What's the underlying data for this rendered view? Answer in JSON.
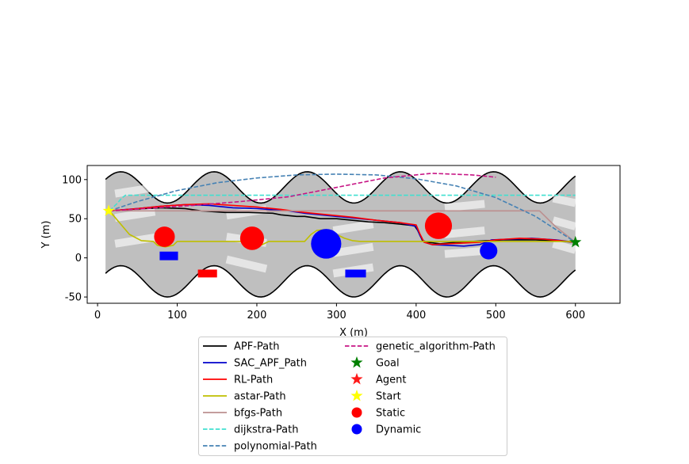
{
  "chart_data": {
    "type": "line",
    "xlabel": "X (m)",
    "ylabel": "Y (m)",
    "xlim": [
      -13,
      656
    ],
    "ylim": [
      -58,
      118
    ],
    "xticks": [
      0,
      100,
      200,
      300,
      400,
      500,
      600
    ],
    "yticks": [
      -50,
      0,
      50,
      100
    ],
    "grid": false,
    "legend_placement": "bottom-center",
    "corridor": {
      "x_range": [
        10,
        600
      ],
      "upper_center": 90,
      "lower_center": -30,
      "amplitude": 20,
      "period": 117,
      "fill_color": "#bfbfbf",
      "edge_color": "#000000"
    },
    "obstacle_strips": [
      [
        [
          22,
          82
        ],
        [
          72,
          90
        ]
      ],
      [
        [
          22,
          51
        ],
        [
          72,
          59
        ]
      ],
      [
        [
          22,
          18
        ],
        [
          72,
          26
        ]
      ],
      [
        [
          162,
          54
        ],
        [
          212,
          62
        ]
      ],
      [
        [
          162,
          27
        ],
        [
          212,
          19
        ]
      ],
      [
        [
          162,
          -2
        ],
        [
          212,
          -14
        ]
      ],
      [
        [
          296,
          35
        ],
        [
          346,
          43
        ]
      ],
      [
        [
          296,
          6
        ],
        [
          346,
          14
        ]
      ],
      [
        [
          296,
          -20
        ],
        [
          346,
          -12
        ]
      ],
      [
        [
          436,
          64
        ],
        [
          486,
          69
        ]
      ],
      [
        [
          436,
          30
        ],
        [
          486,
          35
        ]
      ],
      [
        [
          436,
          5
        ],
        [
          486,
          9
        ]
      ],
      [
        [
          572,
          76
        ],
        [
          600,
          70
        ]
      ],
      [
        [
          572,
          48
        ],
        [
          600,
          40
        ]
      ],
      [
        [
          572,
          18
        ],
        [
          600,
          10
        ]
      ]
    ],
    "series": [
      {
        "name": "APF-Path",
        "color": "#000000",
        "dash": "solid",
        "x": [
          15,
          40,
          80,
          110,
          130,
          160,
          190,
          220,
          230,
          250,
          260,
          280,
          300,
          320,
          340,
          360,
          380,
          398,
          402,
          408,
          415,
          430,
          450,
          470,
          490,
          510,
          530,
          550,
          570,
          585,
          600
        ],
        "y": [
          60,
          62,
          64,
          63,
          60,
          58,
          58,
          57,
          55,
          53,
          53,
          50,
          50,
          48,
          46,
          45,
          43,
          41,
          35,
          22,
          20,
          18,
          20,
          21,
          22,
          23,
          23,
          23,
          22,
          21,
          20
        ]
      },
      {
        "name": "SAC_APF_Path",
        "color": "#0000cc",
        "dash": "solid",
        "x": [
          15,
          50,
          80,
          110,
          140,
          170,
          200,
          240,
          260,
          280,
          300,
          340,
          380,
          400,
          405,
          410,
          420,
          440,
          460,
          480,
          495,
          520,
          545,
          575,
          600
        ],
        "y": [
          60,
          63,
          66,
          68,
          67,
          64,
          63,
          60,
          57,
          55,
          53,
          49,
          45,
          40,
          28,
          20,
          17,
          16,
          15,
          17,
          23,
          24,
          25,
          23,
          20
        ]
      },
      {
        "name": "RL-Path",
        "color": "#ff0000",
        "dash": "solid",
        "x": [
          15,
          50,
          80,
          110,
          140,
          170,
          200,
          230,
          260,
          290,
          320,
          350,
          380,
          400,
          405,
          410,
          420,
          440,
          460,
          480,
          500,
          530,
          560,
          600
        ],
        "y": [
          60,
          63,
          66,
          68,
          69,
          67,
          65,
          62,
          58,
          55,
          52,
          48,
          45,
          42,
          30,
          20,
          17,
          18,
          19,
          20,
          23,
          25,
          24,
          20
        ]
      },
      {
        "name": "astar-Path",
        "color": "#bfbf00",
        "dash": "solid",
        "x": [
          15,
          40,
          55,
          70,
          75,
          85,
          95,
          100,
          180,
          185,
          190,
          200,
          205,
          215,
          260,
          268,
          275,
          285,
          295,
          300,
          310,
          320,
          330,
          340,
          600
        ],
        "y": [
          60,
          30,
          22,
          21,
          16,
          14,
          16,
          21,
          21,
          14,
          12,
          14,
          16,
          21,
          21,
          30,
          35,
          36,
          34,
          30,
          25,
          22,
          21,
          21,
          21
        ]
      },
      {
        "name": "bfgs-Path",
        "color": "#bc8f8f",
        "dash": "solid",
        "x": [
          15,
          100,
          555,
          575,
          600
        ],
        "y": [
          60,
          60,
          60,
          40,
          20
        ]
      },
      {
        "name": "dijkstra-Path",
        "color": "#40e0d0",
        "dash": "dashed",
        "x": [
          15,
          25,
          30,
          35,
          40,
          595,
          600
        ],
        "y": [
          60,
          70,
          76,
          80,
          80,
          80,
          80
        ]
      },
      {
        "name": "polynomial-Path",
        "color": "#4682b4",
        "dash": "dashed",
        "x": [
          15,
          50,
          100,
          150,
          200,
          250,
          300,
          350,
          400,
          450,
          500,
          550,
          600
        ],
        "y": [
          60,
          72,
          86,
          96,
          102,
          106,
          107,
          106,
          101,
          92,
          77,
          53,
          20
        ]
      },
      {
        "name": "genetic_algorithm-Path",
        "color": "#c71585",
        "dash": "dashed",
        "x": [
          15,
          60,
          120,
          180,
          240,
          300,
          360,
          420,
          470,
          500
        ],
        "y": [
          60,
          63,
          67,
          72,
          78,
          90,
          102,
          108,
          106,
          103
        ]
      }
    ],
    "static_obstacles": [
      {
        "x": 84,
        "y": 27,
        "r": 13
      },
      {
        "x": 194,
        "y": 25,
        "r": 15
      },
      {
        "x": 428,
        "y": 41,
        "r": 17
      }
    ],
    "dynamic_obstacles": [
      {
        "x": 287,
        "y": 18,
        "r": 19
      },
      {
        "x": 491,
        "y": 9,
        "r": 11
      }
    ],
    "red_rectangles": [
      {
        "x0": 126,
        "x1": 150,
        "y0": -25,
        "y1": -15
      }
    ],
    "blue_rectangles": [
      {
        "x0": 78,
        "x1": 101,
        "y0": -3,
        "y1": 8
      },
      {
        "x0": 311,
        "x1": 337,
        "y0": -25,
        "y1": -15
      }
    ],
    "markers": {
      "start": {
        "x": 14,
        "y": 60,
        "color": "#ffff00"
      },
      "goal": {
        "x": 600,
        "y": 20,
        "color": "#008000"
      }
    },
    "legend": {
      "col1": [
        {
          "label": "APF-Path",
          "kind": "line",
          "color": "#000000",
          "dash": "solid"
        },
        {
          "label": "SAC_APF_Path",
          "kind": "line",
          "color": "#0000cc",
          "dash": "solid"
        },
        {
          "label": "RL-Path",
          "kind": "line",
          "color": "#ff0000",
          "dash": "solid"
        },
        {
          "label": "astar-Path",
          "kind": "line",
          "color": "#bfbf00",
          "dash": "solid"
        },
        {
          "label": "bfgs-Path",
          "kind": "line",
          "color": "#bc8f8f",
          "dash": "solid"
        },
        {
          "label": "dijkstra-Path",
          "kind": "line",
          "color": "#40e0d0",
          "dash": "dashed"
        },
        {
          "label": "polynomial-Path",
          "kind": "line",
          "color": "#4682b4",
          "dash": "dashed"
        }
      ],
      "col2": [
        {
          "label": "genetic_algorithm-Path",
          "kind": "line",
          "color": "#c71585",
          "dash": "dashed"
        },
        {
          "label": "Goal",
          "kind": "star",
          "color": "#008000"
        },
        {
          "label": "Agent",
          "kind": "star",
          "color": "#ff1a1a"
        },
        {
          "label": "Start",
          "kind": "star",
          "color": "#ffff00"
        },
        {
          "label": "Static",
          "kind": "circle",
          "color": "#ff0000"
        },
        {
          "label": "Dynamic",
          "kind": "circle",
          "color": "#0000ff"
        }
      ]
    }
  }
}
